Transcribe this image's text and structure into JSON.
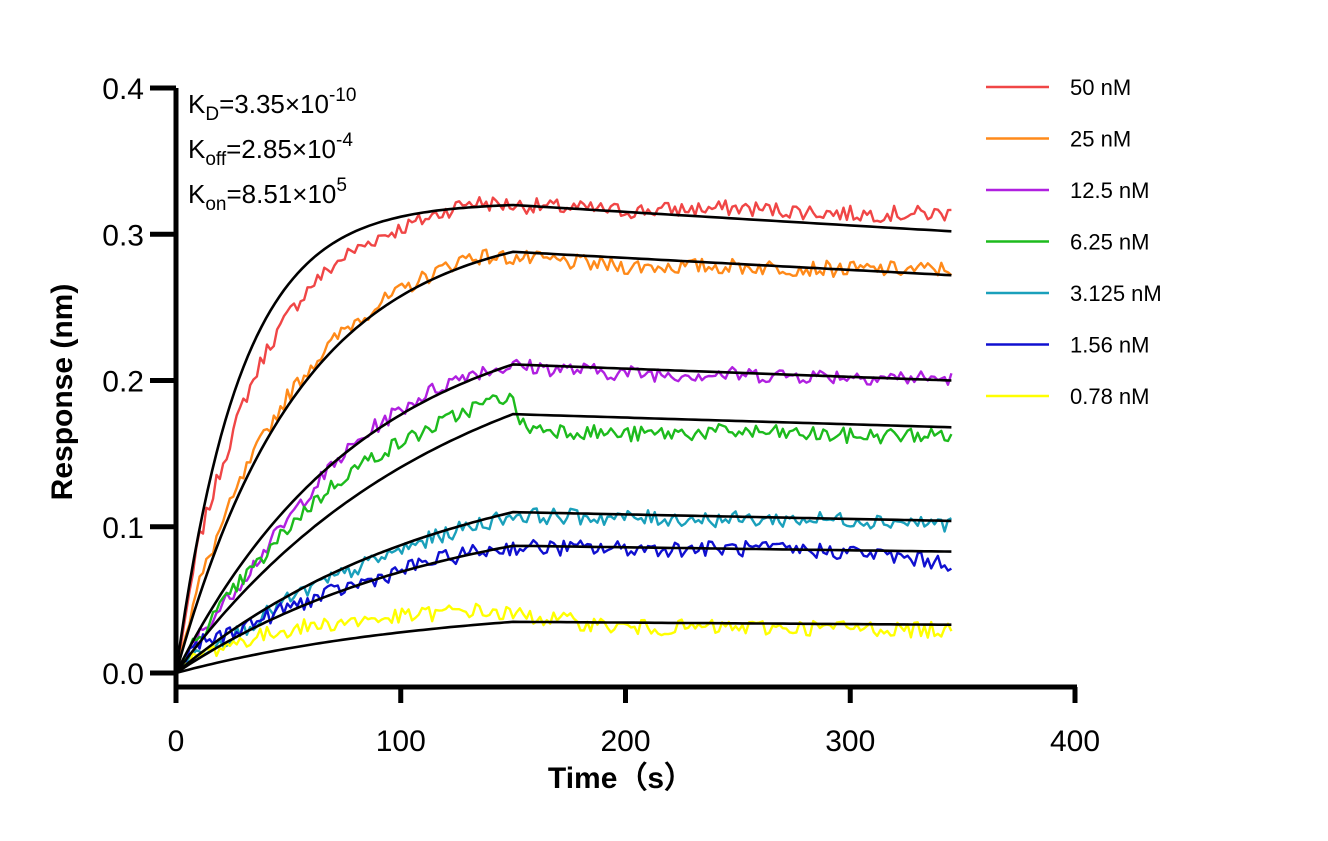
{
  "chart_data": {
    "type": "line",
    "xlabel": "Time（s）",
    "ylabel": "Response (nm)",
    "xlim": [
      0,
      400
    ],
    "ylim": [
      0,
      0.4
    ],
    "xticks": [
      "0",
      "100",
      "200",
      "300",
      "400"
    ],
    "yticks": [
      "0.0",
      "0.1",
      "0.2",
      "0.3",
      "0.4"
    ],
    "grid": false,
    "legend_position": "right",
    "kinetics": [
      {
        "base": "K",
        "sub": "D",
        "eq": "=3.35×10",
        "exp": "-10"
      },
      {
        "base": "K",
        "sub": "off",
        "eq": "=2.85×10",
        "exp": "-4"
      },
      {
        "base": "K",
        "sub": "on",
        "eq": "=8.51×10",
        "exp": "5"
      }
    ],
    "association_end": 150,
    "time_end": 345,
    "series": [
      {
        "name": "50 nM",
        "color": "#f04646",
        "fit_plateau": 0.32,
        "fit_end": 0.302,
        "x": [
          0,
          10,
          20,
          30,
          40,
          50,
          60,
          75,
          90,
          110,
          130,
          150,
          200,
          250,
          300,
          345
        ],
        "y": [
          0.0,
          0.09,
          0.14,
          0.185,
          0.22,
          0.245,
          0.265,
          0.285,
          0.298,
          0.31,
          0.322,
          0.32,
          0.316,
          0.318,
          0.314,
          0.314
        ]
      },
      {
        "name": "25 nM",
        "color": "#ff8a1a",
        "fit_plateau": 0.288,
        "fit_end": 0.272,
        "x": [
          0,
          10,
          20,
          30,
          40,
          50,
          60,
          75,
          90,
          110,
          130,
          150,
          200,
          250,
          300,
          345
        ],
        "y": [
          0.0,
          0.06,
          0.1,
          0.135,
          0.165,
          0.19,
          0.21,
          0.235,
          0.252,
          0.27,
          0.285,
          0.284,
          0.278,
          0.278,
          0.276,
          0.276
        ]
      },
      {
        "name": "12.5 nM",
        "color": "#b020e0",
        "fit_plateau": 0.211,
        "fit_end": 0.2,
        "x": [
          0,
          10,
          20,
          30,
          40,
          50,
          60,
          75,
          90,
          110,
          130,
          150,
          200,
          250,
          300,
          345
        ],
        "y": [
          0.0,
          0.025,
          0.045,
          0.065,
          0.085,
          0.105,
          0.125,
          0.15,
          0.17,
          0.19,
          0.205,
          0.21,
          0.205,
          0.204,
          0.203,
          0.201
        ]
      },
      {
        "name": "6.25 nM",
        "color": "#1dbb1d",
        "fit_plateau": 0.177,
        "fit_end": 0.168,
        "x": [
          0,
          10,
          20,
          30,
          40,
          50,
          60,
          75,
          90,
          110,
          130,
          148,
          155,
          200,
          250,
          300,
          345
        ],
        "y": [
          0.0,
          0.025,
          0.045,
          0.065,
          0.08,
          0.1,
          0.115,
          0.135,
          0.15,
          0.165,
          0.18,
          0.19,
          0.168,
          0.163,
          0.165,
          0.162,
          0.163
        ]
      },
      {
        "name": "3.125 nM",
        "color": "#1aa0bb",
        "fit_plateau": 0.11,
        "fit_end": 0.104,
        "x": [
          0,
          10,
          20,
          30,
          40,
          50,
          60,
          75,
          90,
          110,
          130,
          150,
          200,
          250,
          300,
          345
        ],
        "y": [
          0.0,
          0.015,
          0.022,
          0.03,
          0.04,
          0.05,
          0.058,
          0.068,
          0.078,
          0.09,
          0.1,
          0.108,
          0.106,
          0.105,
          0.105,
          0.102
        ]
      },
      {
        "name": "1.56 nM",
        "color": "#1010d0",
        "fit_plateau": 0.087,
        "fit_end": 0.083,
        "x": [
          0,
          10,
          20,
          30,
          40,
          50,
          60,
          75,
          90,
          110,
          130,
          150,
          200,
          250,
          300,
          345
        ],
        "y": [
          0.0,
          0.02,
          0.025,
          0.032,
          0.038,
          0.045,
          0.05,
          0.058,
          0.065,
          0.075,
          0.082,
          0.086,
          0.085,
          0.085,
          0.083,
          0.075
        ]
      },
      {
        "name": "0.78 nM",
        "color": "#ffff00",
        "fit_plateau": 0.035,
        "fit_end": 0.033,
        "x": [
          0,
          10,
          20,
          30,
          40,
          50,
          60,
          75,
          90,
          110,
          130,
          150,
          200,
          250,
          300,
          345
        ],
        "y": [
          0.0,
          0.012,
          0.018,
          0.022,
          0.026,
          0.03,
          0.032,
          0.035,
          0.037,
          0.04,
          0.043,
          0.04,
          0.031,
          0.031,
          0.031,
          0.029
        ]
      }
    ]
  }
}
